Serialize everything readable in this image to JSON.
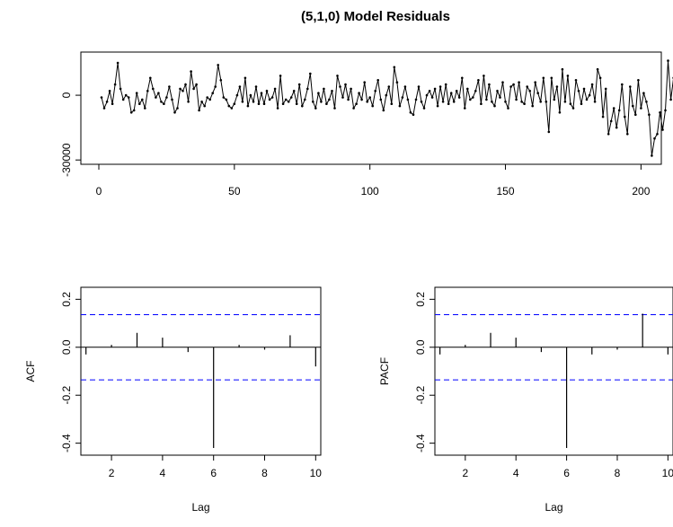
{
  "chart_data": [
    {
      "type": "line",
      "title": "(5,1,0) Model Residuals",
      "xlabel": "",
      "ylabel": "",
      "xlim": [
        0,
        205
      ],
      "ylim": [
        -32000,
        20000
      ],
      "x_ticks": [
        0,
        50,
        100,
        150,
        200
      ],
      "y_ticks": [
        0,
        -30000
      ],
      "series": [
        {
          "values": [
            -1000,
            -6000,
            -3000,
            2000,
            -4000,
            5000,
            15000,
            3000,
            -2000,
            0,
            -1000,
            -8000,
            -7000,
            1000,
            -4000,
            -2000,
            -6000,
            2000,
            8000,
            3000,
            -1000,
            1000,
            -3000,
            -4000,
            -1000,
            4000,
            -2000,
            -8000,
            -6000,
            3000,
            2000,
            5000,
            -3000,
            11000,
            3000,
            5000,
            -7000,
            -3000,
            -5000,
            -1000,
            -2000,
            1000,
            4000,
            14000,
            7000,
            -1000,
            -2000,
            -5000,
            -6000,
            -4000,
            0,
            4000,
            -3000,
            8000,
            -5000,
            0,
            -3000,
            4000,
            -4000,
            1000,
            -4000,
            2000,
            -2000,
            -1000,
            3000,
            -6000,
            9000,
            -4000,
            -2000,
            -3000,
            -1000,
            2000,
            -4000,
            5000,
            -5000,
            -2000,
            3000,
            10000,
            -3000,
            -6000,
            1000,
            -3000,
            3000,
            -4000,
            -2000,
            2000,
            -6000,
            9000,
            4000,
            -1000,
            5000,
            -2000,
            3000,
            -6000,
            -4000,
            1000,
            -2000,
            6000,
            -3000,
            -1000,
            -5000,
            2000,
            7000,
            -2000,
            -7000,
            0,
            4000,
            -4000,
            13000,
            6000,
            -5000,
            -1000,
            4000,
            -2000,
            -8000,
            -9000,
            -2000,
            4000,
            -3000,
            -6000,
            0,
            2000,
            -1000,
            3000,
            -5000,
            4000,
            -3000,
            5000,
            -4000,
            1000,
            -3000,
            2000,
            -1000,
            8000,
            -6000,
            3000,
            -2000,
            -1000,
            2000,
            7000,
            -4000,
            9000,
            -2000,
            5000,
            -3000,
            -5000,
            2000,
            -1000,
            6000,
            -3000,
            -6000,
            4000,
            5000,
            -2000,
            6000,
            -3000,
            -4000,
            4000,
            2000,
            -5000,
            6000,
            1000,
            -3000,
            8000,
            -3000,
            -17000,
            8000,
            -2000,
            4000,
            -8000,
            12000,
            -3000,
            9000,
            -4000,
            -6000,
            7000,
            2000,
            -4000,
            3000,
            -2000,
            0,
            5000,
            -3000,
            12000,
            8000,
            -10000,
            3000,
            -18000,
            -12000,
            -6000,
            -15000,
            -7000,
            5000,
            -10000,
            -18000,
            4000,
            -5000,
            -9000,
            7000,
            -6000,
            1000,
            -3000,
            -9000,
            -28000,
            -20000,
            -18000,
            -8000,
            -16000,
            -7000,
            16000,
            -2000,
            8000,
            4000
          ]
        }
      ]
    },
    {
      "type": "bar",
      "xlabel": "Lag",
      "ylabel": "ACF",
      "xlim": [
        0.8,
        10.2
      ],
      "ylim": [
        -0.45,
        0.25
      ],
      "x_ticks": [
        2,
        4,
        6,
        8,
        10
      ],
      "y_ticks": [
        0.2,
        0.0,
        -0.2,
        -0.4
      ],
      "ci": 0.136,
      "lags": [
        1,
        2,
        3,
        4,
        5,
        6,
        7,
        8,
        9,
        10
      ],
      "values": [
        -0.03,
        0.01,
        0.06,
        0.04,
        -0.02,
        -0.42,
        0.01,
        -0.01,
        0.05,
        -0.08
      ]
    },
    {
      "type": "bar",
      "xlabel": "Lag",
      "ylabel": "PACF",
      "xlim": [
        0.8,
        10.2
      ],
      "ylim": [
        -0.45,
        0.25
      ],
      "x_ticks": [
        2,
        4,
        6,
        8,
        10
      ],
      "y_ticks": [
        0.2,
        0.0,
        -0.2,
        -0.4
      ],
      "ci": 0.136,
      "lags": [
        1,
        2,
        3,
        4,
        5,
        6,
        7,
        8,
        9,
        10
      ],
      "values": [
        -0.03,
        0.01,
        0.06,
        0.04,
        -0.02,
        -0.42,
        -0.03,
        -0.01,
        0.14,
        -0.03
      ]
    }
  ]
}
